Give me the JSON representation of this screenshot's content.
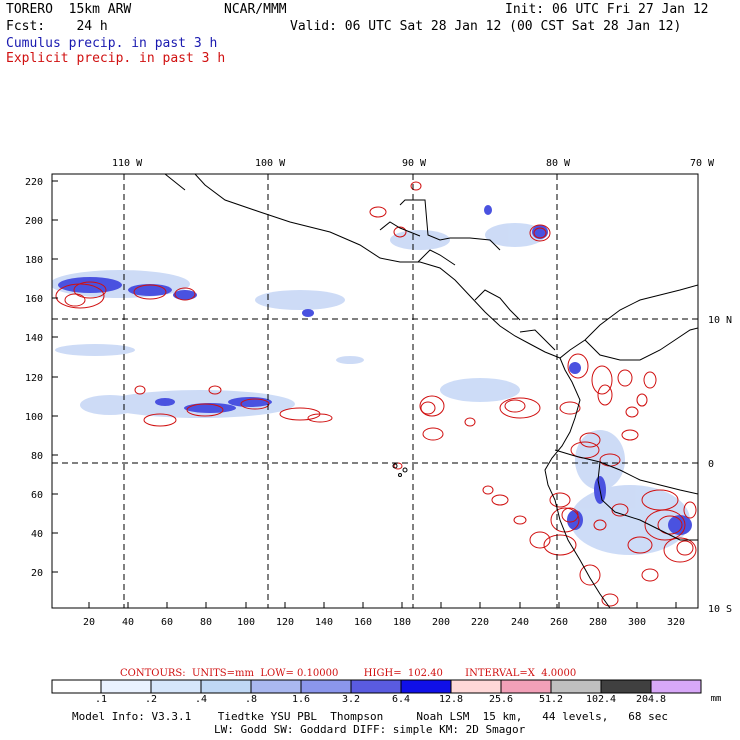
{
  "header": {
    "model_name": "TORERO  15km ARW",
    "center": "NCAR/MMM",
    "init": "Init: 06 UTC Fri 27 Jan 12",
    "fcst": "Fcst:    24 h",
    "valid": "Valid: 06 UTC Sat 28 Jan 12 (00 CST Sat 28 Jan 12)",
    "legend_cumulus": "Cumulus precip. in past 3 h",
    "legend_explicit": "Explicit precip. in past 3 h"
  },
  "map": {
    "top_lon_labels": [
      "110 W",
      "100 W",
      "90 W",
      "80 W",
      "70 W"
    ],
    "right_lat_labels": [
      "10 N",
      "0",
      "10 S"
    ],
    "y_tick_labels": [
      "220",
      "200",
      "180",
      "160",
      "140",
      "120",
      "100",
      "80",
      "60",
      "40",
      "20"
    ],
    "x_tick_labels": [
      "20",
      "40",
      "60",
      "80",
      "100",
      "120",
      "140",
      "160",
      "180",
      "200",
      "220",
      "240",
      "260",
      "280",
      "300",
      "320"
    ],
    "colors": {
      "coast": "#000000",
      "grid": "#000000",
      "cumulus": "#2b3fe0",
      "explicit": "#d01010"
    }
  },
  "contours_line": "CONTOURS:  UNITS=mm  LOW= 0.10000        HIGH=  102.40       INTERVAL=X  4.0000",
  "colorbar": {
    "labels": [
      ".1",
      ".2",
      ".4",
      ".8",
      "1.6",
      "3.2",
      "6.4",
      "12.8",
      "25.6",
      "51.2",
      "102.4",
      "204.8"
    ],
    "unit": "mm",
    "colors": [
      "#ffffff",
      "#eaf2ff",
      "#d6e6fb",
      "#c0d8f5",
      "#aab8f0",
      "#8b96ec",
      "#5a5be0",
      "#1010e8",
      "#ffd8d8",
      "#f2a0b8",
      "#c0c0c0",
      "#404040",
      "#d8a8f8"
    ]
  },
  "footer": {
    "line1": "Model Info: V3.3.1    Tiedtke YSU PBL  Thompson     Noah LSM  15 km,   44 levels,   68 sec",
    "line2": "LW: Godd SW: Goddard DIFF: simple KM: 2D Smagor"
  }
}
